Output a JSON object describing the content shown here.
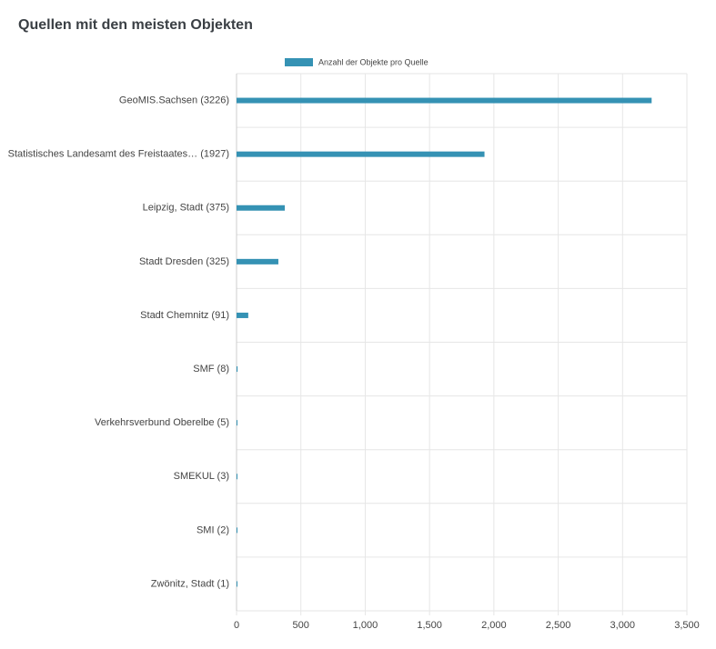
{
  "chart_data": {
    "type": "bar",
    "orientation": "horizontal",
    "title": "Quellen mit den meisten Objekten",
    "categories": [
      "GeoMIS.Sachsen (3226)",
      "Statistisches Landesamt des Freistaates… (1927)",
      "Leipzig, Stadt (375)",
      "Stadt Dresden (325)",
      "Stadt Chemnitz (91)",
      "SMF (8)",
      "Verkehrsverbund Oberelbe (5)",
      "SMEKUL (3)",
      "SMI (2)",
      "Zwönitz, Stadt (1)"
    ],
    "series": [
      {
        "name": "Anzahl der Objekte pro Quelle",
        "color": "#3592b4",
        "values": [
          3226,
          1927,
          375,
          325,
          91,
          8,
          5,
          3,
          2,
          1
        ]
      }
    ],
    "xlim": [
      0,
      3500
    ],
    "xticks": [
      0,
      500,
      {
        "value": 1000,
        "label": "1,000"
      },
      {
        "value": 1500,
        "label": "1,500"
      },
      {
        "value": 2000,
        "label": "2,000"
      },
      {
        "value": 2500,
        "label": "2,500"
      },
      {
        "value": 3000,
        "label": "3,000"
      },
      {
        "value": 3500,
        "label": "3,500"
      }
    ],
    "grid": true,
    "legend": "top"
  }
}
